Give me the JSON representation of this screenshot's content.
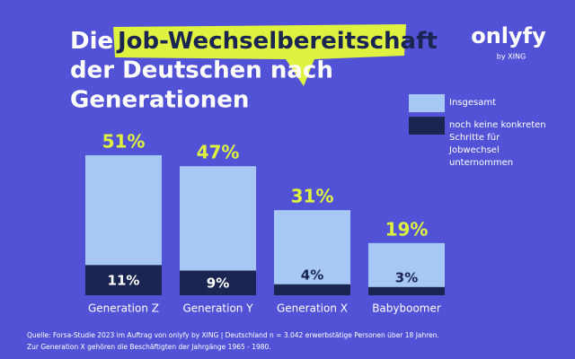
{
  "chart_data": {
    "type": "bar",
    "title": {
      "prefix": "Die",
      "highlight": "Job-Wechselbereitschaft",
      "rest": [
        "der Deutschen nach",
        "Generationen"
      ]
    },
    "categories": [
      "Generation Z",
      "Generation Y",
      "Generation X",
      "Babyboomer"
    ],
    "series": [
      {
        "name": "Insgesamt",
        "color": "#a7c7f4",
        "values": [
          51,
          47,
          31,
          19
        ],
        "value_labels": [
          "51%",
          "47%",
          "31%",
          "19%"
        ],
        "label_color": "#dff23f"
      },
      {
        "name": "noch keine konkreten Schritte für Jobwechsel unternommen",
        "color": "#1b2552",
        "values": [
          11,
          9,
          4,
          3
        ],
        "value_labels": [
          "11%",
          "9%",
          "4%",
          "3%"
        ],
        "label_color": "#ffffff"
      }
    ],
    "highlight_color": "#dff23f",
    "logo": "onlyfy",
    "logo_sub": "by XING",
    "source": [
      "Quelle: Forsa-Studie 2023 im Auftrag von onlyfy by XING | Deutschland n = 3.042 erwerbstätige Personen über 18 Jahren.",
      "Zur Generation X gehören die Beschäftigten der Jahrgänge 1965 - 1980."
    ]
  }
}
